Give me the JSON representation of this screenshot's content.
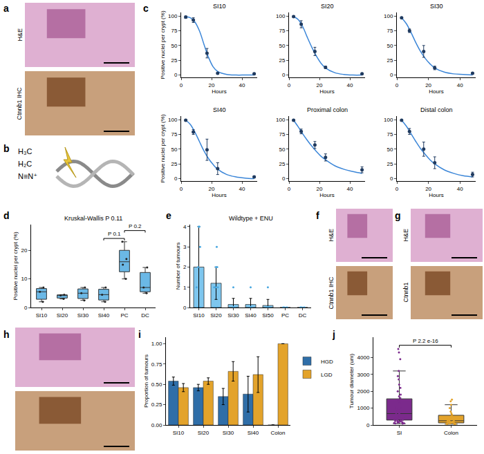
{
  "chart_data": [
    {
      "type": "image",
      "panel": "a",
      "labels": [
        "H&E",
        "Ctnnb1 IHC"
      ]
    },
    {
      "type": "molecule",
      "panel": "b",
      "labels": [
        "H₃C",
        "H₂C",
        "N≡N⁺"
      ]
    },
    {
      "type": "line",
      "panel": "c",
      "title": "SI10",
      "x_label": "Hours",
      "y_label": "Positive nuclei per crypt (%)",
      "xlim": [
        0,
        50
      ],
      "xticks": [
        0,
        20,
        40
      ],
      "ylim": [
        -4,
        106
      ],
      "yticks": [
        0,
        25,
        50,
        75,
        100
      ],
      "points": {
        "x": [
          3,
          8,
          17,
          24,
          48
        ],
        "values": [
          98,
          93,
          37,
          3,
          2
        ],
        "error": [
          2,
          4,
          8,
          1,
          1
        ],
        "color": "#1f3a5f"
      },
      "fit": {
        "x": [
          3,
          6,
          9,
          12,
          15,
          18,
          21,
          24,
          30,
          36,
          42,
          48
        ],
        "values": [
          99,
          97,
          90,
          75,
          52,
          30,
          14,
          6,
          1,
          0,
          0,
          0
        ],
        "color": "#3b86d8"
      }
    },
    {
      "type": "line",
      "title": "SI20",
      "x_label": "Hours",
      "xlim": [
        0,
        50
      ],
      "xticks": [
        0,
        20,
        40
      ],
      "ylim": [
        -4,
        106
      ],
      "yticks": [
        0,
        25,
        50,
        75,
        100
      ],
      "points": {
        "x": [
          3,
          8,
          17,
          24,
          48
        ],
        "values": [
          99,
          86,
          40,
          13,
          2
        ],
        "error": [
          1,
          6,
          7,
          2,
          1
        ],
        "color": "#1f3a5f"
      },
      "fit": {
        "x": [
          3,
          6,
          9,
          12,
          15,
          18,
          21,
          24,
          30,
          36,
          42,
          48
        ],
        "values": [
          99,
          94,
          82,
          64,
          47,
          32,
          20,
          12,
          4,
          1,
          0,
          0
        ],
        "color": "#3b86d8"
      }
    },
    {
      "type": "line",
      "title": "SI30",
      "x_label": "Hours",
      "xlim": [
        0,
        50
      ],
      "xticks": [
        0,
        20,
        40
      ],
      "ylim": [
        -4,
        106
      ],
      "yticks": [
        0,
        25,
        50,
        75,
        100
      ],
      "points": {
        "x": [
          3,
          8,
          17,
          24,
          48
        ],
        "values": [
          97,
          75,
          40,
          12,
          3
        ],
        "error": [
          1,
          3,
          10,
          3,
          1
        ],
        "color": "#1f3a5f"
      },
      "fit": {
        "x": [
          3,
          6,
          9,
          12,
          15,
          18,
          21,
          24,
          30,
          36,
          42,
          48
        ],
        "values": [
          97,
          87,
          72,
          55,
          40,
          28,
          19,
          12,
          5,
          2,
          1,
          0
        ],
        "color": "#3b86d8"
      }
    },
    {
      "type": "line",
      "title": "SI40",
      "x_label": "Hours",
      "y_label": "Positive nuclei per crypt (%)",
      "xlim": [
        0,
        50
      ],
      "xticks": [
        0,
        20,
        40
      ],
      "ylim": [
        -4,
        106
      ],
      "yticks": [
        0,
        25,
        50,
        75,
        100
      ],
      "points": {
        "x": [
          3,
          8,
          17,
          24,
          48
        ],
        "values": [
          99,
          79,
          49,
          17,
          3
        ],
        "error": [
          1,
          4,
          18,
          10,
          1
        ],
        "color": "#1f3a5f"
      },
      "fit": {
        "x": [
          3,
          6,
          9,
          12,
          15,
          18,
          21,
          24,
          30,
          36,
          42,
          48
        ],
        "values": [
          99,
          92,
          79,
          63,
          47,
          34,
          24,
          16,
          7,
          3,
          1,
          0
        ],
        "color": "#3b86d8"
      }
    },
    {
      "type": "line",
      "title": "Proximal colon",
      "x_label": "Hours",
      "xlim": [
        0,
        50
      ],
      "xticks": [
        0,
        20,
        40
      ],
      "ylim": [
        -4,
        106
      ],
      "yticks": [
        0,
        25,
        50,
        75,
        100
      ],
      "points": {
        "x": [
          3,
          8,
          17,
          24,
          48
        ],
        "values": [
          99,
          80,
          57,
          36,
          15
        ],
        "error": [
          1,
          4,
          6,
          6,
          5
        ],
        "color": "#1f3a5f"
      },
      "fit": {
        "x": [
          3,
          6,
          9,
          12,
          15,
          18,
          21,
          24,
          30,
          36,
          42,
          48
        ],
        "values": [
          99,
          88,
          76,
          65,
          55,
          46,
          38,
          32,
          22,
          16,
          12,
          9
        ],
        "color": "#3b86d8"
      }
    },
    {
      "type": "line",
      "title": "Distal colon",
      "x_label": "Hours",
      "xlim": [
        0,
        50
      ],
      "xticks": [
        0,
        20,
        40
      ],
      "ylim": [
        -4,
        106
      ],
      "yticks": [
        0,
        25,
        50,
        75,
        100
      ],
      "points": {
        "x": [
          3,
          8,
          17,
          24,
          48
        ],
        "values": [
          99,
          80,
          50,
          27,
          7
        ],
        "error": [
          1,
          5,
          12,
          10,
          4
        ],
        "color": "#1f3a5f"
      },
      "fit": {
        "x": [
          3,
          6,
          9,
          12,
          15,
          18,
          21,
          24,
          30,
          36,
          42,
          48
        ],
        "values": [
          99,
          89,
          76,
          63,
          51,
          41,
          32,
          25,
          15,
          9,
          5,
          3
        ],
        "color": "#3b86d8"
      }
    },
    {
      "type": "box",
      "panel": "d",
      "title": "Kruskal-Wallis P 0.11",
      "y_label": "Positive nuclei per crypt (%)",
      "categories": [
        "SI10",
        "SI20",
        "SI30",
        "SI40",
        "PC",
        "DC"
      ],
      "values": [
        [
          2,
          5.5,
          7
        ],
        [
          3,
          4.2,
          4.5
        ],
        [
          2.5,
          5,
          7
        ],
        [
          2,
          4.5,
          7
        ],
        [
          10,
          15,
          17,
          23
        ],
        [
          5,
          7,
          14
        ]
      ],
      "color": "#6bb8e6",
      "ylim": [
        0,
        29
      ],
      "yticks": [
        0,
        10,
        20
      ],
      "comparisons": [
        {
          "from": "SI40",
          "to": "PC",
          "label": "P 0.1"
        },
        {
          "from": "PC",
          "to": "DC",
          "label": "P 0.2"
        }
      ]
    },
    {
      "type": "bar",
      "panel": "e",
      "title": "Wildtype + ENU",
      "y_label": "Number of tumours",
      "categories": [
        "SI10",
        "SI20",
        "SI30",
        "SI40",
        "SI50",
        "PC",
        "DC"
      ],
      "values": [
        2.0,
        1.2,
        0.15,
        0.15,
        0.1,
        0,
        0
      ],
      "error": [
        2.0,
        0.8,
        0.3,
        0.3,
        0.3,
        0,
        0
      ],
      "points": [
        [
          0,
          0,
          0,
          1,
          2,
          3,
          4,
          4
        ],
        [
          0,
          0,
          1,
          1,
          1,
          2,
          2,
          3
        ],
        [
          0,
          0,
          0,
          0,
          0,
          0,
          1
        ],
        [
          0,
          0,
          0,
          0,
          0,
          0,
          1
        ],
        [
          0,
          0,
          0,
          0,
          0,
          0,
          0,
          0,
          1
        ],
        [
          0,
          0,
          0,
          0,
          0
        ],
        [
          0,
          0,
          0,
          0,
          0
        ]
      ],
      "color": "#7ec6ee",
      "ylim": [
        0,
        4.1
      ],
      "yticks": [
        0,
        1,
        2,
        3,
        4
      ]
    },
    {
      "type": "image",
      "panel": "f",
      "labels": [
        "H&E",
        "Ctnnb1 IHC"
      ]
    },
    {
      "type": "image",
      "panel": "g",
      "labels": [
        "H&E",
        "Ctnnb1"
      ]
    },
    {
      "type": "image",
      "panel": "h"
    },
    {
      "type": "bar",
      "panel": "i",
      "y_label": "Proportion of tumours",
      "categories": [
        "SI10",
        "SI20",
        "SI30",
        "SI40",
        "Colon"
      ],
      "series": [
        {
          "name": "HGD",
          "color": "#2f6ea8",
          "values": [
            0.54,
            0.46,
            0.35,
            0.38,
            0
          ],
          "error": [
            0.05,
            0.04,
            0.1,
            0.22,
            0
          ]
        },
        {
          "name": "LGD",
          "color": "#e3a32b",
          "values": [
            0.46,
            0.54,
            0.66,
            0.62,
            1.0
          ],
          "error": [
            0.05,
            0.04,
            0.12,
            0.22,
            0
          ]
        }
      ],
      "ylim": [
        0,
        1.08
      ],
      "yticks": [
        {
          "value": 0,
          "label": "0.00"
        },
        0.25,
        {
          "value": 0.5,
          "label": "0.50"
        },
        0.75,
        {
          "value": 1,
          "label": "1.00"
        }
      ],
      "legend": "right"
    },
    {
      "type": "box",
      "panel": "j",
      "y_label": "Tumour diameter (um)",
      "categories": [
        "SI",
        "Colon"
      ],
      "values": [
        [
          4500,
          4300,
          3900,
          3200,
          2900,
          2700,
          2400,
          2200,
          2000,
          1800,
          1700,
          1600,
          1500,
          1400,
          1300,
          1200,
          1100,
          1000,
          950,
          900,
          850,
          800,
          750,
          700,
          650,
          600,
          550,
          500,
          480,
          450,
          420,
          400,
          380,
          350,
          330,
          300,
          280,
          260,
          240,
          220,
          200,
          180,
          160,
          140,
          120,
          100,
          90,
          80
        ],
        [
          1500,
          1400,
          1200,
          1000,
          800,
          700,
          600,
          500,
          450,
          400,
          350,
          300,
          280,
          250,
          220,
          200,
          180,
          160,
          150,
          140,
          120,
          100,
          90,
          80,
          70,
          60,
          50
        ]
      ],
      "colors": [
        "#7b2a8c",
        "#e3a32b"
      ],
      "ylim": [
        0,
        5200
      ],
      "yticks": [
        0,
        1000,
        2000,
        3000,
        4000
      ],
      "comparisons": [
        {
          "from": "SI",
          "to": "Colon",
          "label": "P 2.2 e-16"
        }
      ]
    }
  ]
}
